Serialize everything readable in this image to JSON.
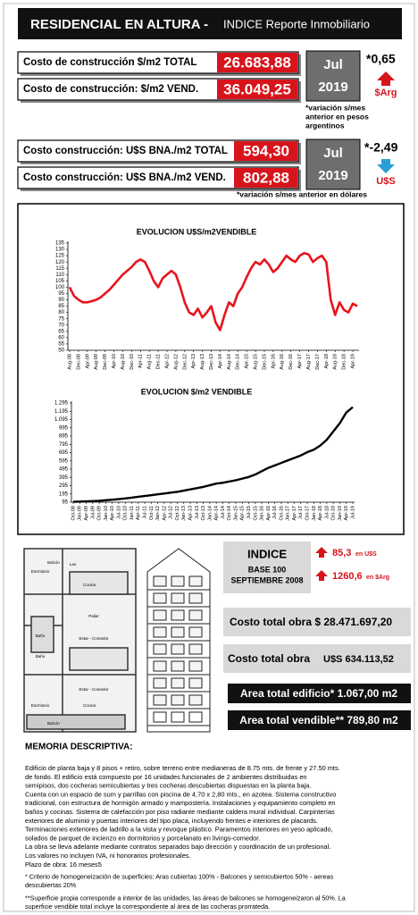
{
  "header": {
    "title": "RESIDENCIAL EN ALTURA - ",
    "subtitle": "INDICE Reporte Inmobiliario"
  },
  "pesos": {
    "rows": [
      {
        "label": "Costo de construcción $/m2 TOTAL",
        "value": "26.683,88"
      },
      {
        "label": "Costo de construcción: $/m2 VEND.",
        "value": "36.049,25"
      }
    ],
    "month": "Jul",
    "year": "2019",
    "change": "*0,65",
    "currency": "$Arg",
    "note": [
      "*variación s/mes",
      "anterior en pesos",
      "argentinos"
    ]
  },
  "dolares": {
    "rows": [
      {
        "label": "Costo construcción: U$S BNA./m2 TOTAL",
        "value": "594,30"
      },
      {
        "label": "Costo construcción: U$S BNA./m2 VEND.",
        "value": "802,88"
      }
    ],
    "month": "Jul",
    "year": "2019",
    "change": "*-2,49",
    "currency": "U$S",
    "note": "*variación s/mes anterior en dólares"
  },
  "chart_data": [
    {
      "type": "line",
      "title": "EVOLUCION U$S/m2VENDIBLE",
      "categories": [
        "Aug-08",
        null,
        "Dec-08",
        null,
        "Apr-09",
        null,
        "Aug-09",
        null,
        "Dec-09",
        null,
        "Apr-10",
        null,
        "Aug-10",
        null,
        "Dec-10",
        null,
        "Apr-11",
        null,
        "Aug-11",
        null,
        "Dec-11",
        null,
        "Apr-12",
        null,
        "Aug-12",
        null,
        "Dec-12",
        null,
        "Apr-13",
        null,
        "Aug-13",
        null,
        "Dec-13",
        null,
        "Apr-14",
        null,
        "Aug-14",
        null,
        "Dec-14",
        null,
        "Apr-15",
        null,
        "Aug-15",
        null,
        "Dec-15",
        null,
        "Apr-16",
        null,
        "Aug-16",
        null,
        "Dec-16",
        null,
        "Apr-17",
        null,
        "Aug-17",
        null,
        "Dec-17",
        null,
        "Apr-18",
        null,
        "Aug-18",
        null,
        "Dec-18",
        null,
        "Apr-19",
        null
      ],
      "values": [
        100,
        93,
        90,
        88,
        88,
        89,
        90,
        92,
        95,
        98,
        102,
        106,
        110,
        113,
        116,
        120,
        122,
        120,
        113,
        105,
        100,
        107,
        110,
        113,
        110,
        100,
        88,
        80,
        78,
        83,
        76,
        80,
        85,
        72,
        66,
        78,
        88,
        85,
        95,
        100,
        108,
        115,
        120,
        118,
        122,
        118,
        112,
        115,
        120,
        125,
        122,
        120,
        125,
        127,
        126,
        120,
        123,
        125,
        120,
        90,
        78,
        88,
        82,
        80,
        87,
        85
      ],
      "color": "#e8141c",
      "ylim": [
        50,
        135
      ],
      "yticks": [
        50,
        55,
        60,
        65,
        70,
        75,
        80,
        85,
        90,
        95,
        100,
        105,
        110,
        115,
        120,
        125,
        130,
        135
      ]
    },
    {
      "type": "line",
      "title": "EVOLUCION $/m2 VENDIBLE",
      "categories": [
        "Oct-08",
        "Jan-09",
        "Apr-09",
        "Jul-09",
        "Oct-09",
        "Jan-10",
        "Apr-10",
        "Jul-10",
        "Oct-10",
        "Jan-11",
        "Apr-11",
        "Jul-11",
        "Oct-11",
        "Jan-12",
        "Apr-12",
        "Jul-12",
        "Oct-12",
        "Jan-13",
        "Apr-13",
        "Jul-13",
        "Oct-13",
        "Jan-14",
        "Apr-14",
        "Jul-14",
        "Oct-14",
        "Jan-15",
        "Apr-15",
        "Jul-15",
        "Oct-15",
        "Jan-16",
        "Apr-16",
        "Jul-16",
        "Oct-16",
        "Jan-17",
        "Apr-17",
        "Jul-17",
        "Oct-17",
        "Jan-18",
        "Apr-18",
        "Jul-18",
        "Oct-18",
        "Jan-19",
        "Apr-19",
        "Jul-19"
      ],
      "values": [
        100,
        102,
        105,
        108,
        112,
        118,
        125,
        132,
        140,
        150,
        160,
        170,
        180,
        190,
        200,
        210,
        220,
        235,
        250,
        265,
        280,
        300,
        320,
        330,
        345,
        360,
        380,
        400,
        430,
        470,
        510,
        540,
        570,
        600,
        630,
        660,
        700,
        730,
        780,
        850,
        950,
        1050,
        1180,
        1245
      ],
      "color": "#000000",
      "ylim": [
        95,
        1295
      ],
      "yticks": [
        95,
        195,
        295,
        395,
        495,
        595,
        695,
        795,
        895,
        995,
        {
          "value": 1095,
          "label": "1.095"
        },
        {
          "value": 1195,
          "label": "1.195"
        },
        {
          "value": 1295,
          "label": "1.295"
        }
      ]
    }
  ],
  "floor_plan": {
    "labels": [
      "Balcón",
      "Dormitorio",
      "Lav.",
      "Cocina",
      "Estar - Comedor",
      "Baño",
      "Palier",
      "Baño",
      "Estar - Comedor",
      "Cocina",
      "Dormitorio",
      "Balcón"
    ]
  },
  "indice": {
    "title": "INDICE",
    "base": "BASE 100",
    "date": "SEPTIEMBRE  2008",
    "usd": "85,3",
    "usd_unit": "en U$S",
    "ars": "1260,6",
    "ars_unit": "en $Arg"
  },
  "costs": {
    "total_ars": "Costo total obra $ 28.471.697,20",
    "total_usd_label": "Costo total obra",
    "total_usd": "U$S 634.113,52"
  },
  "areas": {
    "edificio": "Area total edificio* 1.067,00 m2",
    "vendible": "Area total vendible** 789,80 m2"
  },
  "memoria": {
    "title": "MEMORIA DESCRIPTIVA:",
    "lines": [
      "Edificio de planta baja y 8 pisos + retiro, sobre terreno entre medianeras de 8.75 mts. de frente y 27.50 mts.",
      "de fondo. El edificio está compuesto por 16 unidades funcionales de 2 ambientes distribuidas en",
      "semipisos, dos cocheras semicubiertas y tres cocheras descubiertas dispuestas en la planta baja.",
      "Cuenta con un espacio de sum y parrillas con piscina de 4,70 x 2,80 mts., en azotea.  Sistema constructivo",
      "tradicional, con estructura de hormigón armado y mampostería. Instalaciones y equipamiento completo en",
      "baños y cocinas.  Sistema de calefacción por piso radiante mediante caldera mural individual. Carpinterías",
      "exteriores de aluminio y puertas interiores del tipo placa, incluyendo frentes e interiores de placards.",
      "Terminaciones exteriores de ladrillo a la vista y revoque plástico. Paramentos interiores en yeso aplicado,",
      "solados de parquet de incienzo en dormitorios y porcelanato en livings-comedor.",
      "La obra se lleva adelante mediante contratos separados bajo dirección y coordinación de un profesional.",
      "Los valores no incluyen IVA, ni honorarios profesionales.",
      "Plazo de obra: 16 meses5"
    ],
    "note1": [
      "* Criterio de homogeneización de superficies: Aras cubiertas 100% - Balcones y semicubiertos 50% - aereas",
      "descubiertas 20%"
    ],
    "note2": [
      "**Superficie propia corresponde a interior de las unidades, las áreas de balcones se homogeneizaron al 50%. La",
      "superficie vendible total incluye la correspondiente al área de las cocheras prorrateda."
    ]
  }
}
